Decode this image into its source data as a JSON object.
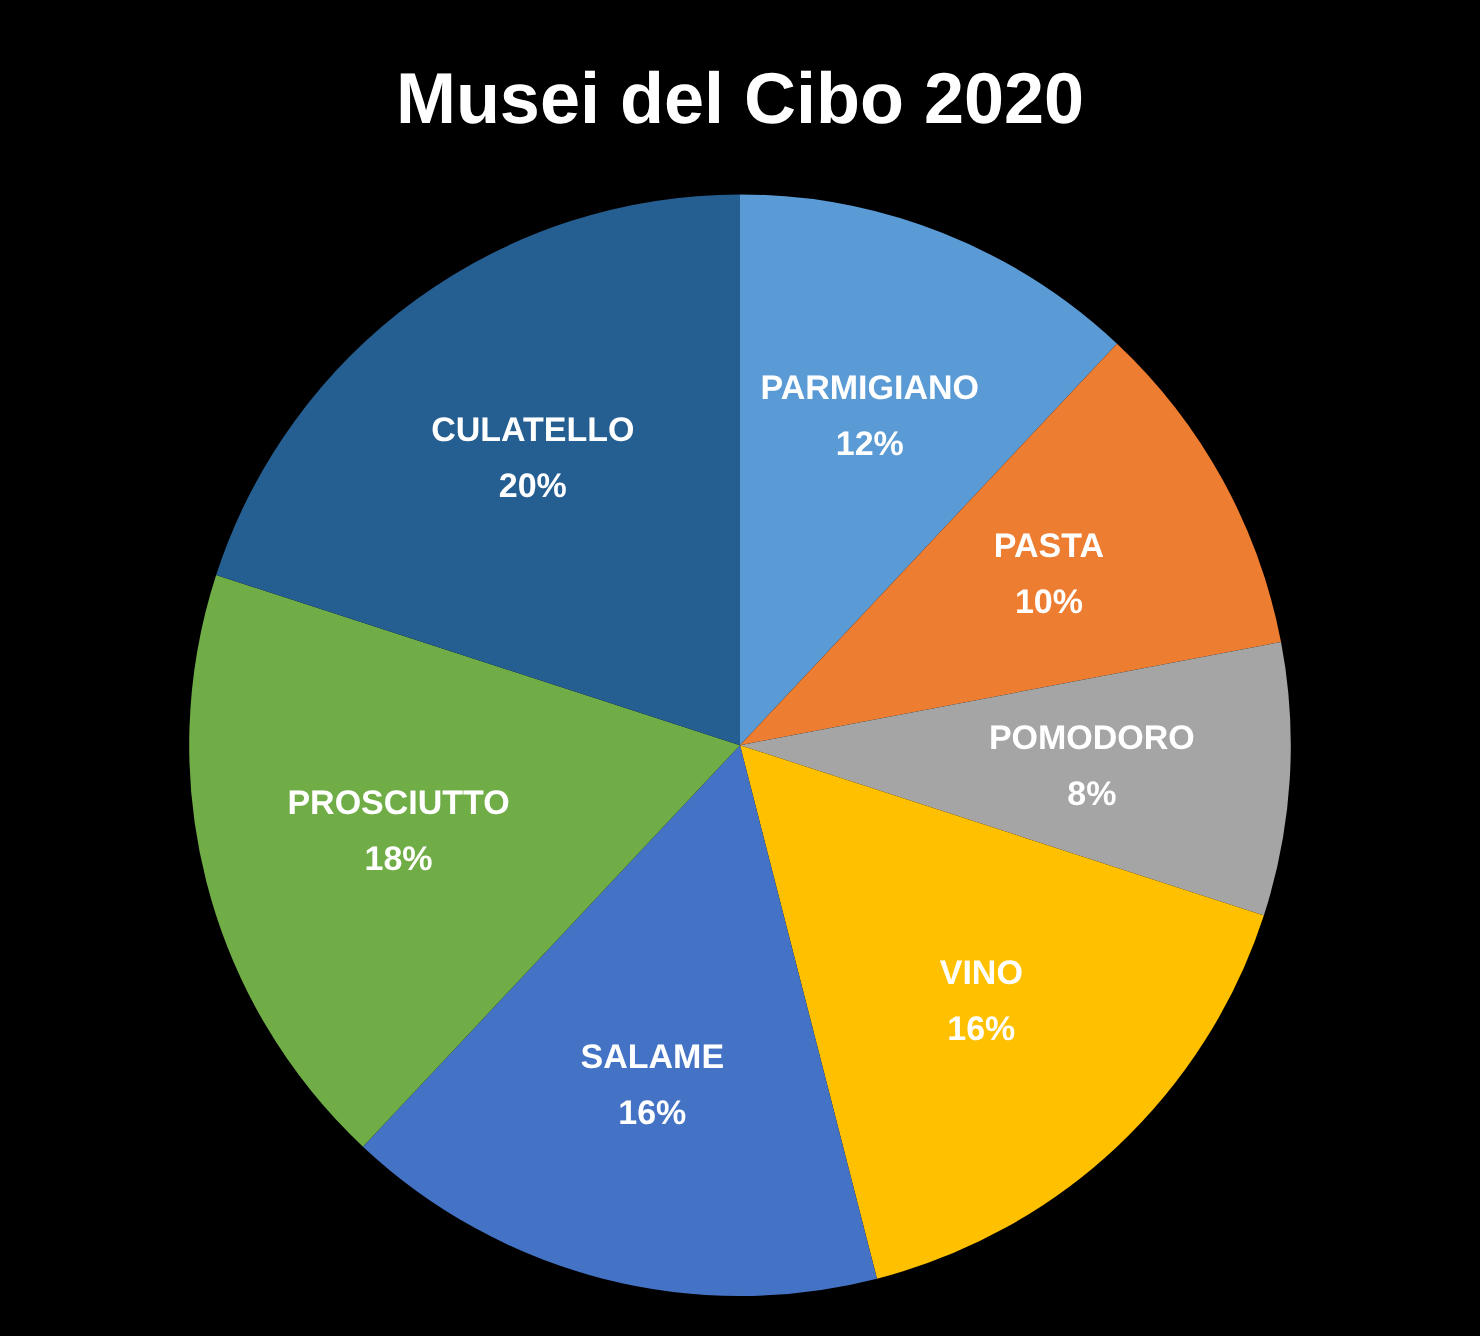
{
  "chart_data": {
    "type": "pie",
    "title": "Musei del Cibo 2020",
    "categories": [
      "PARMIGIANO",
      "PASTA",
      "POMODORO",
      "VINO",
      "SALAME",
      "PROSCIUTTO",
      "CULATELLO"
    ],
    "values": [
      12,
      10,
      8,
      16,
      16,
      18,
      20
    ],
    "value_labels": [
      "12%",
      "10%",
      "8%",
      "16%",
      "16%",
      "18%",
      "20%"
    ],
    "colors": [
      "#5b9bd5",
      "#ed7d31",
      "#a5a5a5",
      "#ffc000",
      "#4472c4",
      "#70ad47",
      "#255e91"
    ],
    "legend": false
  }
}
